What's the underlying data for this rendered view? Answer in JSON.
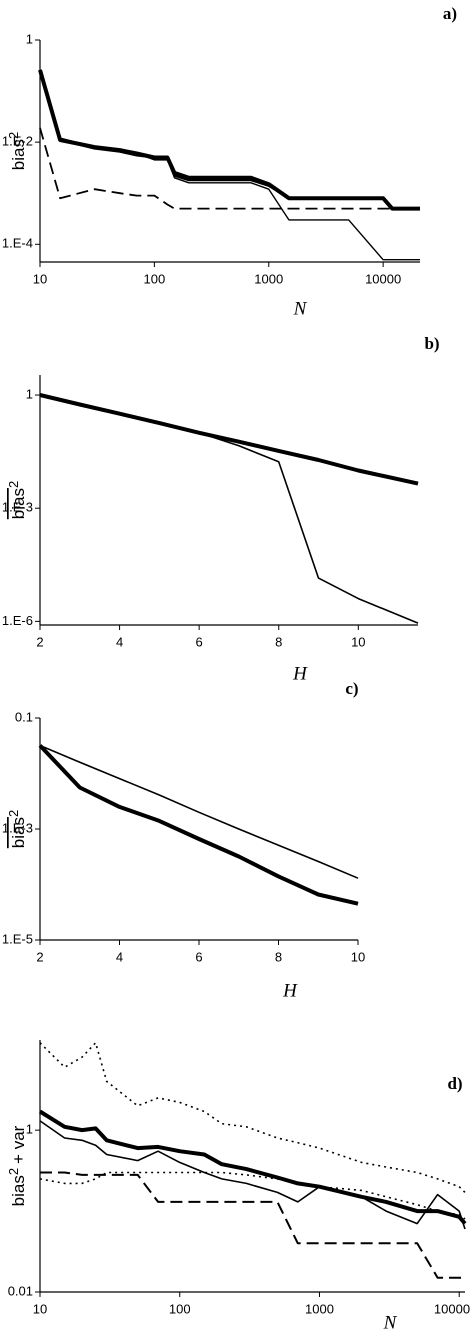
{
  "chart_data": [
    {
      "type": "line",
      "title": "a)",
      "x_label": "N",
      "y_label": {
        "text": "bias",
        "superscript": "2"
      },
      "xlog": true,
      "ylog": true,
      "grid": false,
      "x": [
        10,
        15,
        30,
        50,
        70,
        100,
        130,
        150,
        200,
        500,
        700,
        1000,
        1500,
        5000,
        10000,
        12000,
        21000
      ],
      "xlim": [
        10,
        21000
      ],
      "xticks": [
        10,
        100,
        1000,
        10000
      ],
      "ylim": [
        4.5e-05,
        1
      ],
      "yticks": [
        1,
        {
          "value": 0.01,
          "label": "1.E-2"
        },
        {
          "value": 0.0001,
          "label": "1.E-4"
        }
      ],
      "series": [
        {
          "color": "#000000",
          "width": 4,
          "dash": "solid",
          "values": [
            0.26,
            0.011,
            0.008,
            0.007,
            0.006,
            0.005,
            0.005,
            0.0025,
            0.002,
            0.002,
            0.002,
            0.0015,
            0.0008,
            0.0008,
            0.0008,
            0.0005,
            0.0005
          ]
        },
        {
          "color": "#000000",
          "width": 2.2,
          "dash": "solid",
          "values": [
            0.26,
            0.011,
            0.0075,
            0.0065,
            0.0055,
            0.005,
            0.005,
            0.0022,
            0.0018,
            0.0018,
            0.0018,
            0.0014,
            0.0008,
            0.0008,
            0.0008,
            0.0005,
            0.0005
          ]
        },
        {
          "color": "#000000",
          "width": 1.4,
          "dash": "solid",
          "values": [
            0.26,
            0.012,
            0.008,
            0.007,
            0.006,
            0.0045,
            0.0045,
            0.002,
            0.0016,
            0.0016,
            0.0016,
            0.0012,
            0.0003,
            0.0003,
            5e-05,
            5e-05,
            5e-05
          ]
        },
        {
          "color": "#000000",
          "width": 1.8,
          "dash": "dashed",
          "values": [
            0.019,
            0.0008,
            0.0012,
            0.001,
            0.0009,
            0.0009,
            0.0006,
            0.0005,
            0.0005,
            0.0005,
            0.0005,
            0.0005,
            0.0005,
            0.0005,
            0.0005,
            0.0005,
            0.0005
          ]
        }
      ]
    },
    {
      "type": "line",
      "title": "b)",
      "x_label": "H",
      "y_label": {
        "text": "bias",
        "superscript": "2"
      },
      "overline": true,
      "xlog": false,
      "ylog": true,
      "grid": false,
      "x": [
        2,
        3,
        4,
        5,
        6,
        7,
        8,
        9,
        10,
        11.5
      ],
      "xlim": [
        2,
        11.5
      ],
      "xticks": [
        2,
        4,
        6,
        8,
        10
      ],
      "ylim": [
        8e-07,
        3.4
      ],
      "yticks": [
        1,
        {
          "value": 0.001,
          "label": "1.E-3"
        },
        {
          "value": 1e-06,
          "label": "1.E-6"
        }
      ],
      "series": [
        {
          "color": "#000000",
          "width": 4,
          "dash": "solid",
          "values": [
            1,
            0.56,
            0.32,
            0.18,
            0.1,
            0.058,
            0.033,
            0.019,
            0.01,
            0.0045
          ]
        },
        {
          "color": "#000000",
          "width": 1.6,
          "dash": "solid",
          "values": [
            1,
            0.56,
            0.32,
            0.18,
            0.1,
            0.045,
            0.017,
            1.4e-05,
            4e-06,
            9e-07
          ]
        }
      ]
    },
    {
      "type": "line",
      "title": "c)",
      "x_label": "H",
      "y_label": {
        "text": "bias",
        "superscript": "2"
      },
      "overline": true,
      "xlog": false,
      "ylog": true,
      "grid": false,
      "x": [
        2,
        3,
        4,
        5,
        6,
        7,
        8,
        9,
        10
      ],
      "xlim": [
        2,
        10
      ],
      "xticks": [
        2,
        4,
        6,
        8,
        10
      ],
      "ylim": [
        1e-05,
        0.1
      ],
      "yticks": [
        0.1,
        {
          "value": 0.001,
          "label": "1.E-3"
        },
        {
          "value": 1e-05,
          "label": "1.E-5"
        }
      ],
      "series": [
        {
          "color": "#000000",
          "width": 4,
          "dash": "solid",
          "values": [
            0.032,
            0.0056,
            0.0025,
            0.0014,
            0.00066,
            0.00032,
            0.00014,
            6.6e-05,
            4.5e-05
          ]
        },
        {
          "color": "#000000",
          "width": 1.6,
          "dash": "solid",
          "values": [
            0.032,
            0.016,
            0.0081,
            0.0041,
            0.002,
            0.001,
            0.00051,
            0.00026,
            0.00013
          ]
        }
      ]
    },
    {
      "type": "line",
      "title": "d)",
      "x_label": "N",
      "y_label": {
        "text": "bias",
        "superscript": "2",
        "suffix": "+ var"
      },
      "xlog": true,
      "ylog": true,
      "grid": false,
      "x": [
        10,
        15,
        20,
        25,
        30,
        50,
        70,
        100,
        150,
        200,
        300,
        500,
        700,
        1000,
        2000,
        3000,
        5000,
        7000,
        10000,
        11000
      ],
      "xlim": [
        10,
        11000
      ],
      "xticks": [
        10,
        100,
        1000,
        10000
      ],
      "ylim": [
        0.01,
        13
      ],
      "yticks": [
        1,
        0.01
      ],
      "series": [
        {
          "color": "#000000",
          "width": 4,
          "dash": "solid",
          "values": [
            1.7,
            1.1,
            1.0,
            1.05,
            0.75,
            0.6,
            0.62,
            0.55,
            0.5,
            0.38,
            0.33,
            0.26,
            0.22,
            0.2,
            0.15,
            0.13,
            0.1,
            0.1,
            0.085,
            0.07
          ]
        },
        {
          "color": "#000000",
          "width": 1.6,
          "dash": "solid",
          "values": [
            1.3,
            0.8,
            0.75,
            0.65,
            0.5,
            0.42,
            0.55,
            0.4,
            0.3,
            0.25,
            0.22,
            0.17,
            0.13,
            0.2,
            0.15,
            0.1,
            0.07,
            0.16,
            0.1,
            0.06
          ]
        },
        {
          "color": "#000000",
          "width": 2,
          "dash": "dashed",
          "values": [
            0.3,
            0.3,
            0.28,
            0.28,
            0.28,
            0.28,
            0.13,
            0.13,
            0.13,
            0.13,
            0.13,
            0.13,
            0.04,
            0.04,
            0.04,
            0.04,
            0.04,
            0.015,
            0.015,
            0.015
          ]
        },
        {
          "color": "#000000",
          "width": 1.6,
          "dash": "dotted",
          "values": [
            12,
            6,
            8,
            12,
            4,
            2,
            2.5,
            2.2,
            1.7,
            1.2,
            1.1,
            0.8,
            0.7,
            0.6,
            0.4,
            0.35,
            0.3,
            0.25,
            0.2,
            0.17
          ]
        },
        {
          "color": "#000000",
          "width": 1.6,
          "dash": "dotted",
          "values": [
            0.25,
            0.22,
            0.22,
            0.25,
            0.3,
            0.3,
            0.3,
            0.3,
            0.3,
            0.3,
            0.28,
            0.25,
            0.22,
            0.2,
            0.18,
            0.15,
            0.12,
            0.1,
            0.09,
            0.08
          ]
        }
      ]
    }
  ]
}
